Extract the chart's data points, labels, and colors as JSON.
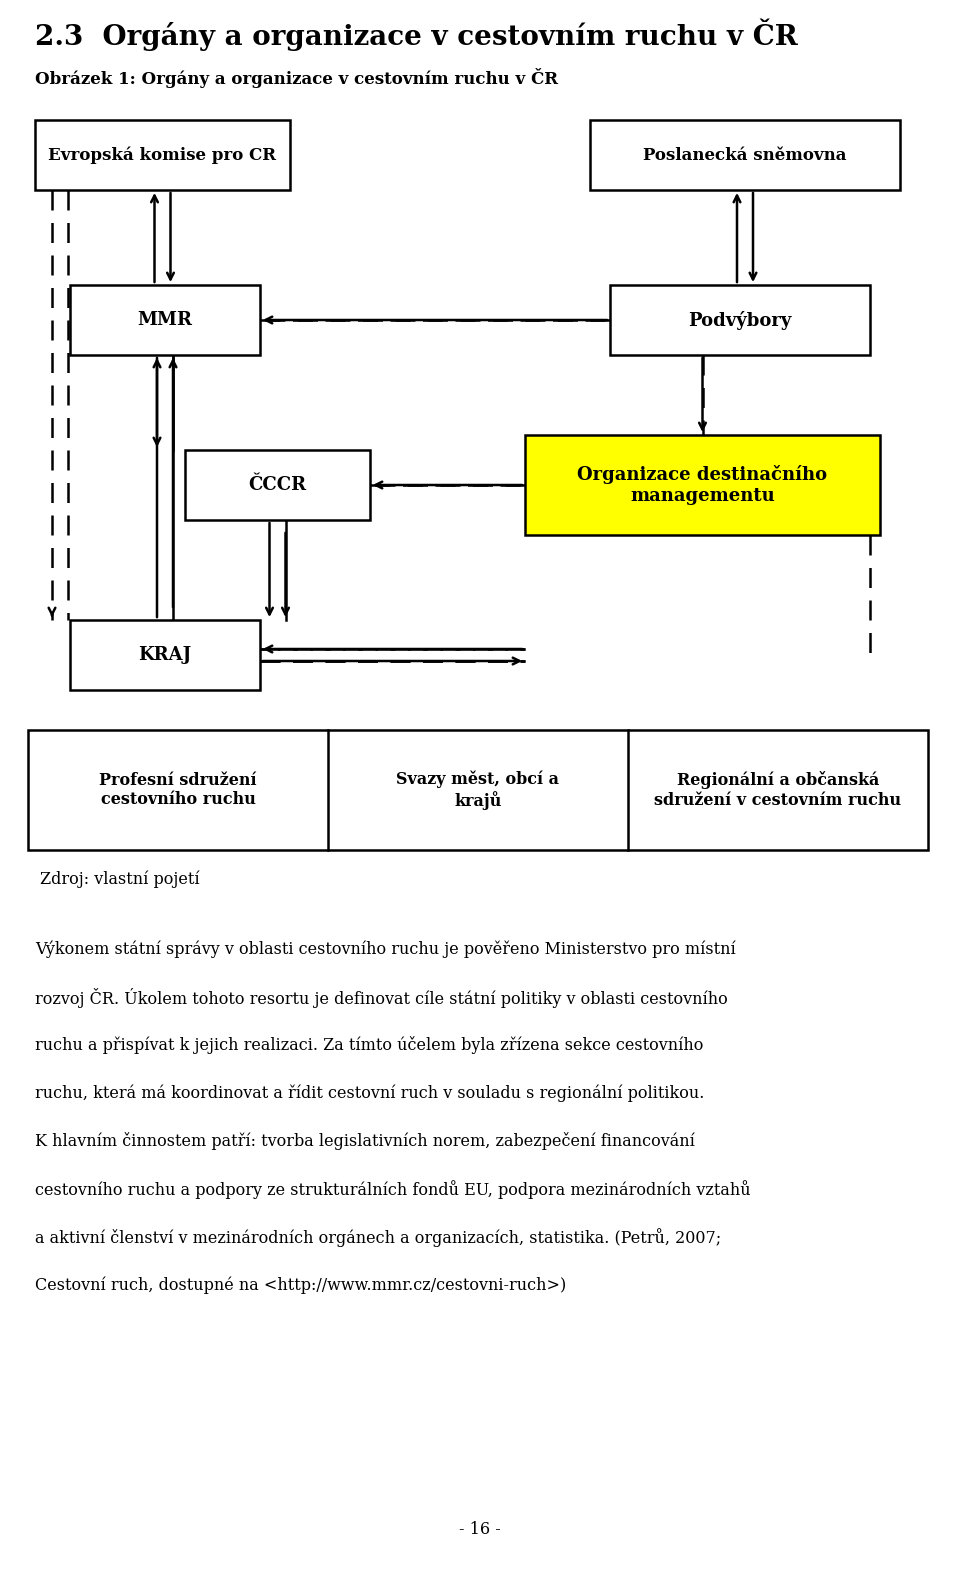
{
  "title": "2.3  Orgány a organizace v cestovním ruchu v ČR",
  "subtitle": "Obrázek 1: Orgány a organizace v cestovním ruchu v ČR",
  "table_cols": [
    "Profesní sdružení\ncestovního ruchu",
    "Svazy měst, obcí a\nkrajů",
    "Regionální a občanská\nsdružení v cestovním ruchu"
  ],
  "source_text": "Zdroj: vlastní pojetí",
  "body_text": "Výkonem státní správy v oblasti cestovního ruchu je pověřeno Ministerstvo pro místní\nrozvoj ČR. Úkolem tohoto resortu je definovat cíle státní politiky v oblasti cestovního\nruchu a přispívat k jejich realizaci. Za tímto účelem byla zřízena sekce cestovního\nruchu, která má koordinovat a řídit cestovní ruch v souladu s regionální politikou.\nK hlavním činnostem patří: tvorba legislativních norem, zabezpečení financování\ncestovního ruchu a podpory ze strukturálních fondů EU, podpora mezinárodních vztahů\na aktivní členství v mezinárodních orgánech a organizacích, statistika. (Petrů, 2007;\nCestovní ruch, dostupné na <http://www.mmr.cz/cestovni-ruch>)",
  "page_number": "- 16 -",
  "bg_color": "#ffffff"
}
